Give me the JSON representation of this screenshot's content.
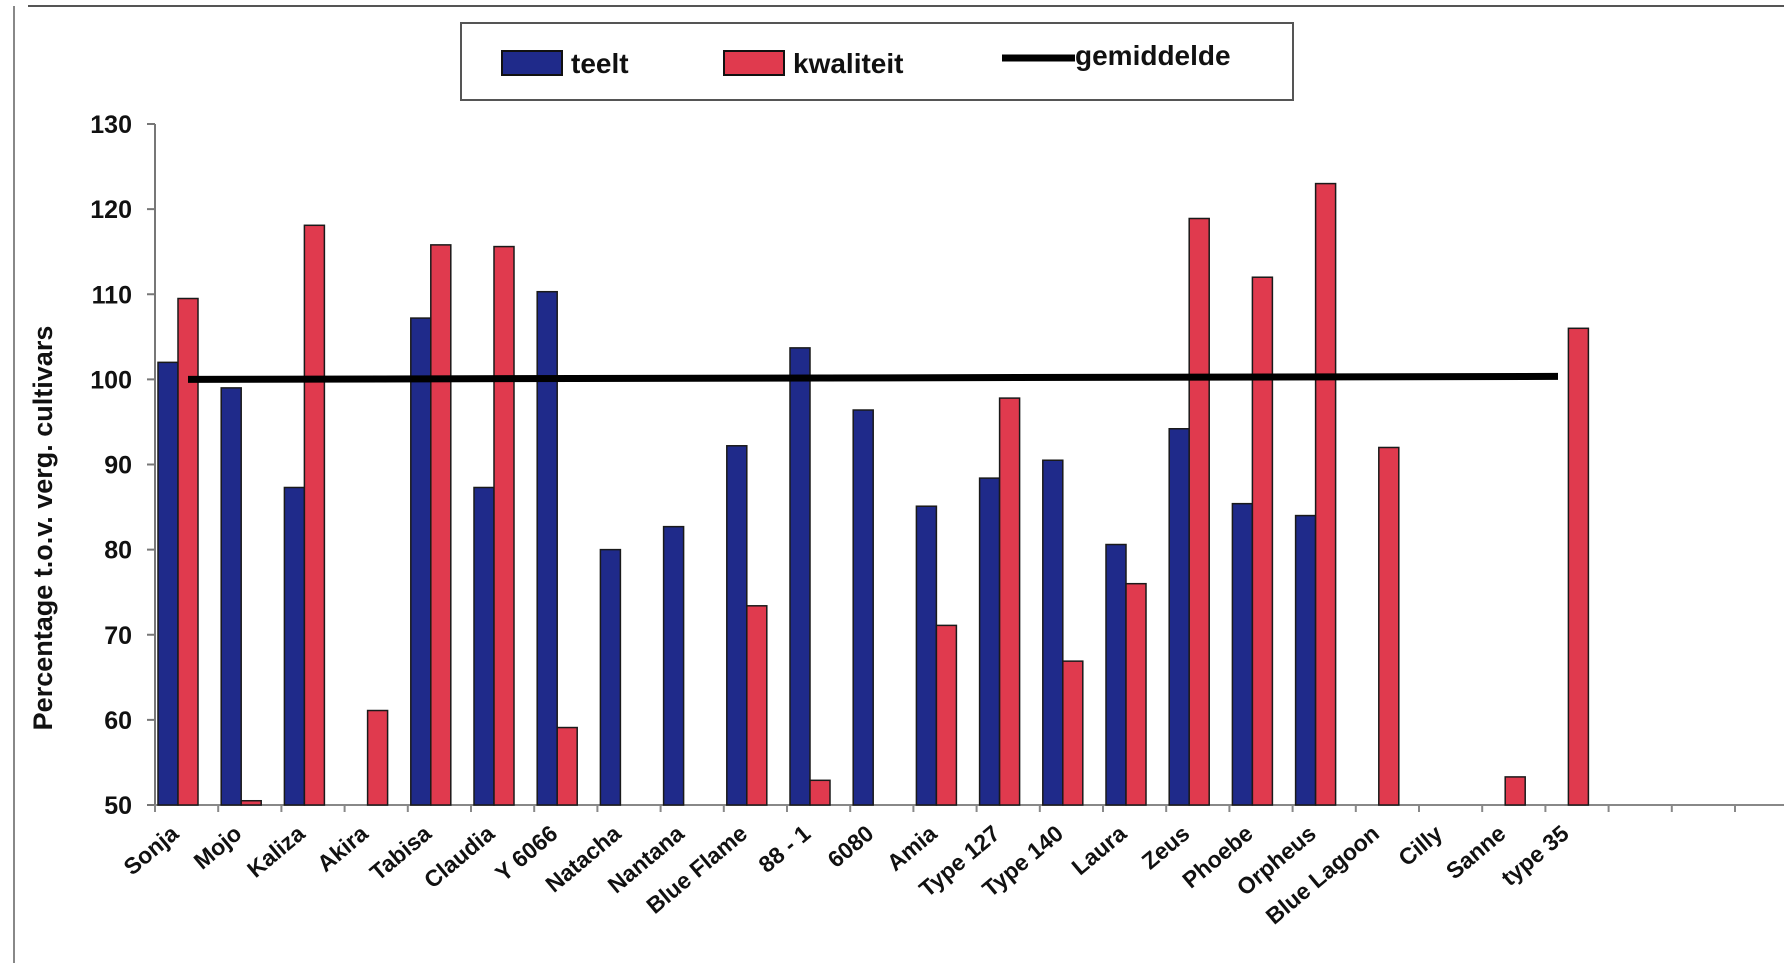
{
  "chart_data": {
    "type": "bar",
    "title": "",
    "xlabel": "",
    "ylabel": "Percentage t.o.v. verg. cultivars",
    "ylim": [
      50,
      130
    ],
    "yticks": [
      50,
      60,
      70,
      80,
      90,
      100,
      110,
      120,
      130
    ],
    "categories": [
      "Sonja",
      "Mojo",
      "Kaliza",
      "Akira",
      "Tabisa",
      "Claudia",
      "Y 6066",
      "Natacha",
      "Nantana",
      "Blue Flame",
      "88 - 1",
      "6080",
      "Amia",
      "Type 127",
      "Type 140",
      "Laura",
      "Zeus",
      "Phoebe",
      "Orpheus",
      "Blue Lagoon",
      "Cilly",
      "Sanne",
      "type 35"
    ],
    "series": [
      {
        "name": "teelt",
        "color": "#1f2a8a",
        "values": [
          102,
          99,
          87.3,
          null,
          107.2,
          87.3,
          110.3,
          80,
          82.7,
          92.2,
          103.7,
          96.4,
          85.1,
          88.4,
          90.5,
          80.6,
          94.2,
          85.4,
          84,
          null,
          null,
          null,
          null
        ]
      },
      {
        "name": "kwaliteit",
        "color": "#e03a4e",
        "values": [
          109.5,
          50.5,
          118.1,
          61.1,
          115.8,
          115.6,
          59.1,
          null,
          null,
          73.4,
          52.9,
          null,
          71.1,
          97.8,
          66.9,
          76,
          118.9,
          112,
          123,
          92,
          null,
          53.3,
          106
        ]
      }
    ],
    "reference_line": {
      "name": "gemiddelde",
      "value": 100,
      "color": "#000000"
    },
    "legend": {
      "position": "top-center",
      "entries": [
        "teelt",
        "kwaliteit",
        "gemiddelde"
      ]
    },
    "grid": false
  }
}
